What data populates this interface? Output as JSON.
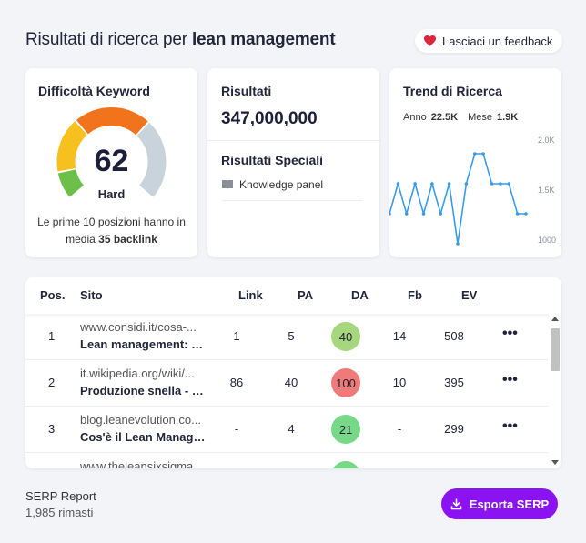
{
  "header": {
    "title_prefix": "Risultati di ricerca per ",
    "keyword": "lean management",
    "feedback_label": "Lasciaci un feedback"
  },
  "difficulty": {
    "title": "Difficoltà Keyword",
    "value": "62",
    "level": "Hard",
    "note_prefix": "Le prime 10 posizioni hanno in media ",
    "note_bold": "35 backlink",
    "colors": {
      "green": "#6cc04a",
      "yellow": "#f6c11f",
      "orange": "#f1741c",
      "gray": "#c9d3dc"
    }
  },
  "results": {
    "title": "Risultati",
    "count": "347,000,000",
    "special_title": "Risultati Speciali",
    "special_items": [
      "Knowledge panel"
    ]
  },
  "trend": {
    "title": "Trend di Ricerca",
    "year_label": "Anno",
    "year_value": "22.5K",
    "month_label": "Mese",
    "month_value": "1.9K",
    "y_ticks": [
      "2.0K",
      "1.5K",
      "1000"
    ],
    "ylim": [
      1000,
      2000
    ],
    "values": [
      1300,
      1600,
      1300,
      1600,
      1300,
      1600,
      1300,
      1600,
      1000,
      1600,
      1900,
      1900,
      1600,
      1600,
      1600,
      1300,
      1300
    ],
    "line_color": "#3b9be8"
  },
  "table": {
    "headers": {
      "pos": "Pos.",
      "site": "Sito",
      "link": "Link",
      "pa": "PA",
      "da": "DA",
      "fb": "Fb",
      "ev": "EV"
    },
    "rows": [
      {
        "pos": "1",
        "url": "www.considi.it/cosa-...",
        "title": "Lean management: c...",
        "link": "1",
        "pa": "5",
        "da": "40",
        "da_color": "#a6d77e",
        "fb": "14",
        "ev": "508",
        "more": "•••"
      },
      {
        "pos": "2",
        "url": "it.wikipedia.org/wiki/...",
        "title": "Produzione snella - W...",
        "link": "86",
        "pa": "40",
        "da": "100",
        "da_color": "#ef7a7a",
        "fb": "10",
        "ev": "395",
        "more": "•••"
      },
      {
        "pos": "3",
        "url": "blog.leanevolution.co...",
        "title": "Cos'è il Lean Manage...",
        "link": "-",
        "pa": "4",
        "da": "21",
        "da_color": "#77d987",
        "fb": "-",
        "ev": "299",
        "more": "•••"
      },
      {
        "pos": "",
        "url": "www.theleansixsigma...",
        "title": "",
        "link": "",
        "pa": "",
        "da": "",
        "da_color": "#77d987",
        "fb": "",
        "ev": "",
        "more": ""
      }
    ]
  },
  "footer": {
    "title": "SERP Report",
    "remaining": "1,985 rimasti",
    "export_label": "Esporta SERP",
    "accent": "#8b13f2"
  }
}
